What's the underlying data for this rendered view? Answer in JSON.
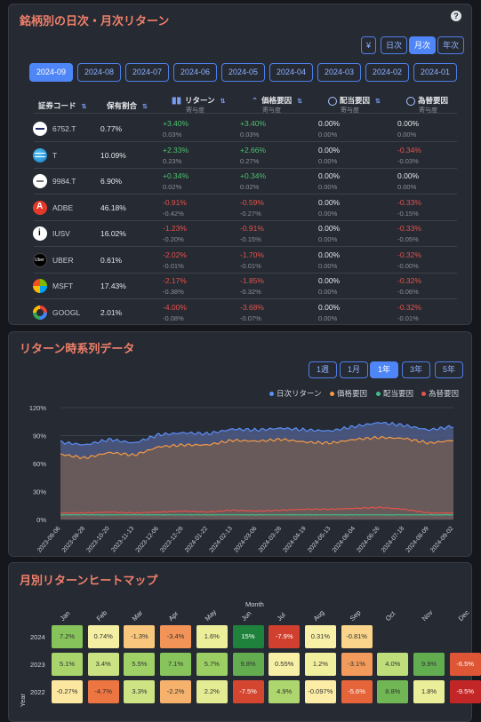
{
  "returns_panel": {
    "title": "銘柄別の日次・月次リターン",
    "help": "?",
    "currency_button": "¥",
    "period_buttons": [
      {
        "label": "日次",
        "active": false
      },
      {
        "label": "月次",
        "active": true
      },
      {
        "label": "年次",
        "active": false
      }
    ],
    "month_tabs": [
      {
        "label": "2024-09",
        "active": true
      },
      {
        "label": "2024-08",
        "active": false
      },
      {
        "label": "2024-07",
        "active": false
      },
      {
        "label": "2024-06",
        "active": false
      },
      {
        "label": "2024-05",
        "active": false
      },
      {
        "label": "2024-04",
        "active": false
      },
      {
        "label": "2024-03",
        "active": false
      },
      {
        "label": "2024-02",
        "active": false
      },
      {
        "label": "2024-01",
        "active": false
      }
    ],
    "columns": {
      "code": "証券コード",
      "weight": "保有割合",
      "return": "リターン",
      "price": "価格要因",
      "dividend": "配当要因",
      "fx": "為替要因",
      "contrib": "寄与度"
    },
    "rows": [
      {
        "ticker": "6752.T",
        "logo": "panasonic-logo",
        "weight": "0.77%",
        "ret": "+3.40%",
        "ret_c": "0.03%",
        "price": "+3.40%",
        "price_c": "0.03%",
        "div": "0.00%",
        "div_c": "0.00%",
        "fx": "0.00%",
        "fx_c": "0.00%"
      },
      {
        "ticker": "T",
        "logo": "att-logo",
        "weight": "10.09%",
        "ret": "+2.33%",
        "ret_c": "0.23%",
        "price": "+2.66%",
        "price_c": "0.27%",
        "div": "0.00%",
        "div_c": "0.00%",
        "fx": "-0.34%",
        "fx_c": "-0.03%"
      },
      {
        "ticker": "9984.T",
        "logo": "softbank-logo",
        "weight": "6.90%",
        "ret": "+0.34%",
        "ret_c": "0.02%",
        "price": "+0.34%",
        "price_c": "0.02%",
        "div": "0.00%",
        "div_c": "0.00%",
        "fx": "0.00%",
        "fx_c": "0.00%"
      },
      {
        "ticker": "ADBE",
        "logo": "adobe-logo",
        "weight": "46.18%",
        "ret": "-0.91%",
        "ret_c": "-0.42%",
        "price": "-0.59%",
        "price_c": "-0.27%",
        "div": "0.00%",
        "div_c": "0.00%",
        "fx": "-0.33%",
        "fx_c": "-0.15%"
      },
      {
        "ticker": "IUSV",
        "logo": "ishares-logo",
        "weight": "16.02%",
        "ret": "-1.23%",
        "ret_c": "-0.20%",
        "price": "-0.91%",
        "price_c": "-0.15%",
        "div": "0.00%",
        "div_c": "0.00%",
        "fx": "-0.33%",
        "fx_c": "-0.05%"
      },
      {
        "ticker": "UBER",
        "logo": "uber-logo",
        "weight": "0.61%",
        "ret": "-2.02%",
        "ret_c": "-0.01%",
        "price": "-1.70%",
        "price_c": "-0.01%",
        "div": "0.00%",
        "div_c": "0.00%",
        "fx": "-0.32%",
        "fx_c": "-0.00%"
      },
      {
        "ticker": "MSFT",
        "logo": "microsoft-logo",
        "weight": "17.43%",
        "ret": "-2.17%",
        "ret_c": "-0.38%",
        "price": "-1.85%",
        "price_c": "-0.32%",
        "div": "0.00%",
        "div_c": "0.00%",
        "fx": "-0.32%",
        "fx_c": "-0.06%"
      },
      {
        "ticker": "GOOGL",
        "logo": "google-logo",
        "weight": "2.01%",
        "ret": "-4.00%",
        "ret_c": "-0.08%",
        "price": "-3.68%",
        "price_c": "-0.07%",
        "div": "0.00%",
        "div_c": "0.00%",
        "fx": "-0.32%",
        "fx_c": "-0.01%"
      }
    ]
  },
  "timeseries_panel": {
    "title": "リターン時系列データ",
    "range_buttons": [
      {
        "label": "1週",
        "active": false
      },
      {
        "label": "1月",
        "active": false
      },
      {
        "label": "1年",
        "active": true
      },
      {
        "label": "3年",
        "active": false
      },
      {
        "label": "5年",
        "active": false
      }
    ],
    "colors": {
      "daily": "#5b8ff9",
      "price": "#f59b45",
      "dividend": "#3fbf8a",
      "fx": "#e5534b"
    }
  },
  "heatmap_panel": {
    "title": "月別リターンヒートマップ",
    "xlabel": "Month",
    "ylabel": "Year",
    "months": [
      "Jan",
      "Feb",
      "Mar",
      "Apr",
      "May",
      "Jun",
      "Jul",
      "Aug",
      "Sep",
      "Oct",
      "Nov",
      "Dec"
    ],
    "years": [
      "2024",
      "2023",
      "2022"
    ],
    "cells": [
      [
        "7.2%",
        "0.74%",
        "-1.3%",
        "-3.4%",
        "1.6%",
        "15%",
        "-7.9%",
        "0.31%",
        "-0.81%",
        "",
        "",
        ""
      ],
      [
        "5.1%",
        "3.4%",
        "5.5%",
        "7.1%",
        "5.7%",
        "9.8%",
        "0.55%",
        "1.2%",
        "-3.1%",
        "4.0%",
        "9.9%",
        "-6.5%"
      ],
      [
        "-0.27%",
        "-4.7%",
        "3.3%",
        "-2.2%",
        "2.2%",
        "-7.5%",
        "4.9%",
        "-0.097%",
        "-5.6%",
        "8.8%",
        "1.8%",
        "-9.5%"
      ]
    ],
    "values": [
      [
        7.2,
        0.74,
        -1.3,
        -3.4,
        1.6,
        15,
        -7.9,
        0.31,
        -0.81,
        null,
        null,
        null
      ],
      [
        5.1,
        3.4,
        5.5,
        7.1,
        5.7,
        9.8,
        0.55,
        1.2,
        -3.1,
        4.0,
        9.9,
        -6.5
      ],
      [
        -0.27,
        -4.7,
        3.3,
        -2.2,
        2.2,
        -7.5,
        4.9,
        -0.097,
        -5.6,
        8.8,
        1.8,
        -9.5
      ]
    ]
  },
  "chart_data": {
    "type": "area",
    "legend": [
      "日次リターン",
      "価格要因",
      "配当要因",
      "為替要因"
    ],
    "legend_position": "top-right",
    "y_ticks": [
      "120%",
      "90%",
      "60%",
      "30%",
      "0%"
    ],
    "ylim": [
      0,
      120
    ],
    "grid": true,
    "x_ticks": [
      "2023-09-06",
      "2023-09-28",
      "2023-10-20",
      "2023-11-13",
      "2023-12-06",
      "2023-12-28",
      "2024-01-22",
      "2024-02-13",
      "2024-03-06",
      "2024-03-28",
      "2024-04-19",
      "2024-05-13",
      "2024-06-04",
      "2024-06-26",
      "2024-07-18",
      "2024-08-09",
      "2024-09-02"
    ],
    "series": [
      {
        "name": "日次リターン",
        "values": [
          83,
          80,
          86,
          82,
          91,
          93,
          92,
          97,
          96,
          98,
          96,
          95,
          100,
          104,
          101,
          96,
          100
        ]
      },
      {
        "name": "価格要因",
        "values": [
          70,
          66,
          72,
          69,
          78,
          80,
          80,
          85,
          84,
          86,
          83,
          82,
          86,
          88,
          87,
          82,
          85
        ]
      },
      {
        "name": "配当要因",
        "values": [
          5,
          5,
          5,
          5,
          5,
          5,
          5,
          5,
          5,
          5,
          5,
          5,
          5,
          5,
          5,
          5,
          5
        ]
      },
      {
        "name": "為替要因",
        "values": [
          7,
          7,
          8,
          7,
          8,
          9,
          8,
          10,
          9,
          10,
          11,
          11,
          12,
          13,
          11,
          7,
          7
        ]
      }
    ]
  }
}
